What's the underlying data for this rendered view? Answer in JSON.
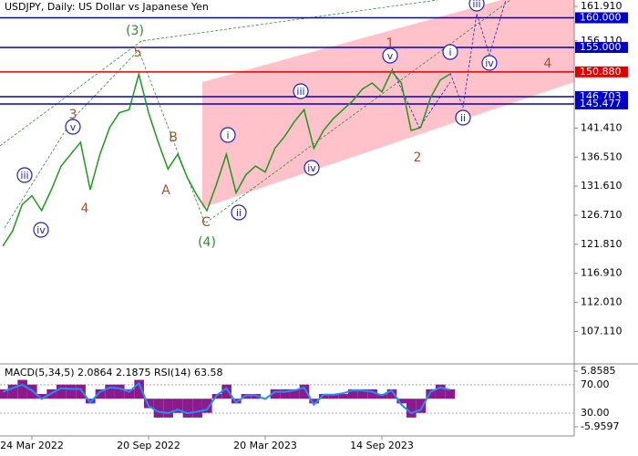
{
  "header": {
    "title": "USDJPY, Daily:  US Dollar vs Japanese Yen"
  },
  "chart_data": [
    {
      "type": "line",
      "categories": [
        null,
        null,
        null,
        "24 Mar 2022",
        null,
        null,
        null,
        null,
        null,
        null,
        null,
        null,
        null,
        null,
        null,
        "20 Sep 2022",
        null,
        null,
        null,
        null,
        null,
        null,
        null,
        null,
        null,
        null,
        null,
        "20 Mar 2023",
        null,
        null,
        null,
        null,
        null,
        null,
        null,
        null,
        null,
        null,
        null,
        "14 Sep 2023",
        null,
        null,
        null,
        null,
        null,
        null,
        null
      ],
      "values": [
        121.5,
        124.0,
        128.5,
        130.0,
        127.5,
        131.0,
        135.0,
        137.0,
        139.0,
        131.0,
        137.0,
        141.5,
        144.0,
        144.5,
        150.5,
        144.0,
        139.0,
        134.5,
        137.0,
        133.0,
        130.0,
        127.5,
        132.0,
        137.0,
        130.5,
        133.5,
        135.0,
        134.0,
        138.0,
        140.0,
        142.5,
        144.5,
        138.0,
        141.0,
        143.0,
        144.5,
        146.0,
        148.0,
        149.0,
        147.5,
        151.0,
        149.0,
        141.0,
        141.5,
        146.5,
        149.5,
        150.5
      ],
      "color": "#1a9a1a",
      "ylim": [
        101.8,
        163.0
      ],
      "yticks": [
        {
          "value": 161.91,
          "label": "161.910"
        },
        {
          "value": 156.11,
          "label": "156.110"
        },
        {
          "value": 141.41,
          "label": "141.410"
        },
        {
          "value": 136.51,
          "label": "136.510"
        },
        {
          "value": 131.61,
          "label": "131.610"
        },
        {
          "value": 126.71,
          "label": "126.710"
        },
        {
          "value": 121.81,
          "label": "121.810"
        },
        {
          "value": 116.91,
          "label": "116.910"
        },
        {
          "value": 112.01,
          "label": "112.010"
        },
        {
          "value": 107.11,
          "label": "107.110"
        }
      ],
      "levels": [
        {
          "value": 160.0,
          "label": "160.000",
          "color": "#0000c8"
        },
        {
          "value": 155.0,
          "label": "155.000",
          "color": "#0000c8"
        },
        {
          "value": 150.88,
          "label": "150.880",
          "color": "#e00000"
        },
        {
          "value": 146.703,
          "label": "146.703",
          "color": "#0000c8"
        },
        {
          "value": 145.477,
          "label": "145.477",
          "color": "#0000c8"
        }
      ],
      "annotations": [
        {
          "text": "(3)",
          "color": "#2e8b2e"
        },
        {
          "text": "5",
          "color": "#a0522d"
        },
        {
          "text": "3",
          "color": "#a0522d"
        },
        {
          "text": "v",
          "color": "#2020c0",
          "circled": true
        },
        {
          "text": "iii",
          "color": "#2020c0",
          "circled": true
        },
        {
          "text": "iv",
          "color": "#2020c0",
          "circled": true
        },
        {
          "text": "4",
          "color": "#a0522d"
        },
        {
          "text": "B",
          "color": "#a0522d"
        },
        {
          "text": "A",
          "color": "#a0522d"
        },
        {
          "text": "C",
          "color": "#a0522d"
        },
        {
          "text": "(4)",
          "color": "#2e8b2e"
        },
        {
          "text": "i",
          "color": "#2020c0",
          "circled": true
        },
        {
          "text": "ii",
          "color": "#2020c0",
          "circled": true
        },
        {
          "text": "iii",
          "color": "#2020c0",
          "circled": true
        },
        {
          "text": "iv",
          "color": "#2020c0",
          "circled": true
        },
        {
          "text": "1",
          "color": "#a0522d"
        },
        {
          "text": "v",
          "color": "#2020c0",
          "circled": true
        },
        {
          "text": "i",
          "color": "#2020c0",
          "circled": true
        },
        {
          "text": "2",
          "color": "#a0522d"
        },
        {
          "text": "ii",
          "color": "#2020c0",
          "circled": true
        },
        {
          "text": "iii",
          "color": "#2020c0",
          "circled": true
        },
        {
          "text": "iv",
          "color": "#2020c0",
          "circled": true
        },
        {
          "text": "4",
          "color": "#a0522d"
        }
      ]
    },
    {
      "type": "bar",
      "title": "MACD(5,34,5) 2.0864 2.1875 RSI(14) 63.58",
      "values": [
        2,
        3,
        4,
        3,
        1,
        2,
        3,
        3,
        3,
        -1,
        2,
        3,
        3,
        2,
        4,
        -2,
        -4,
        -4,
        -3,
        -4,
        -4,
        -3,
        1,
        3,
        -1,
        1,
        1,
        0,
        2,
        2,
        2,
        3,
        -1,
        1,
        1,
        1,
        2,
        2,
        2,
        1,
        2,
        -1,
        -4,
        -3,
        2,
        3,
        2
      ],
      "color": "#8b1a8b",
      "ylim": [
        -7.9,
        7.2
      ],
      "yticks": [
        5.8585,
        -5.9597
      ],
      "y2lim": [
        -2,
        98
      ],
      "y2ticks": [
        {
          "value": 70,
          "label": "70.00"
        },
        {
          "value": 30,
          "label": "30.00"
        }
      ],
      "series": [
        {
          "axis": "y2",
          "color": "#1e90ff",
          "values": [
            60,
            65,
            70,
            62,
            50,
            58,
            65,
            64,
            64,
            45,
            60,
            66,
            65,
            60,
            72,
            40,
            32,
            30,
            35,
            30,
            32,
            35,
            55,
            65,
            45,
            55,
            55,
            50,
            60,
            60,
            62,
            66,
            42,
            56,
            56,
            58,
            62,
            62,
            60,
            55,
            62,
            42,
            30,
            35,
            60,
            66,
            63
          ]
        }
      ]
    }
  ]
}
